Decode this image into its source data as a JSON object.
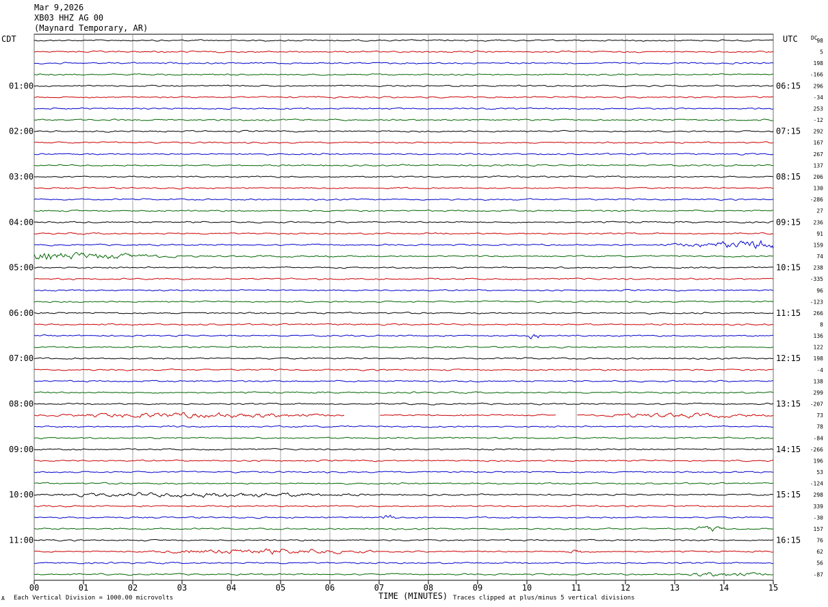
{
  "header": {
    "date": "Mar 9,2026",
    "station": "XB03 HHZ AG 00",
    "location": "(Maynard Temporary, AR)"
  },
  "left_tz": "CDT",
  "right_tz": "UTC",
  "dc_label": "DC",
  "footer": {
    "left_note": "Each Vertical Division = 1000.00 microvolts",
    "center_label": "TIME (MINUTES)",
    "right_note": "Traces clipped at plus/minus 5 vertical divisions",
    "corner_mark": "A"
  },
  "colors": {
    "trace_cycle": [
      "#000000",
      "#cc0000",
      "#0000cc",
      "#006600"
    ],
    "grid": "#888888"
  },
  "chart_data": {
    "type": "line",
    "x_label": "TIME (MINUTES)",
    "x_ticks": [
      "00",
      "01",
      "02",
      "03",
      "04",
      "05",
      "06",
      "07",
      "08",
      "09",
      "10",
      "11",
      "12",
      "13",
      "14",
      "15"
    ],
    "xlim": [
      0,
      15
    ],
    "trace_count": 48,
    "traces_per_hour": 4,
    "left_hour_labels": [
      {
        "trace": 4,
        "label": "01:00"
      },
      {
        "trace": 8,
        "label": "02:00"
      },
      {
        "trace": 12,
        "label": "03:00"
      },
      {
        "trace": 16,
        "label": "04:00"
      },
      {
        "trace": 20,
        "label": "05:00"
      },
      {
        "trace": 24,
        "label": "06:00"
      },
      {
        "trace": 28,
        "label": "07:00"
      },
      {
        "trace": 32,
        "label": "08:00"
      },
      {
        "trace": 36,
        "label": "09:00"
      },
      {
        "trace": 40,
        "label": "10:00"
      },
      {
        "trace": 44,
        "label": "11:00"
      }
    ],
    "right_hour_labels": [
      {
        "trace": 4,
        "label": "06:15"
      },
      {
        "trace": 8,
        "label": "07:15"
      },
      {
        "trace": 12,
        "label": "08:15"
      },
      {
        "trace": 16,
        "label": "09:15"
      },
      {
        "trace": 20,
        "label": "10:15"
      },
      {
        "trace": 24,
        "label": "11:15"
      },
      {
        "trace": 28,
        "label": "12:15"
      },
      {
        "trace": 32,
        "label": "13:15"
      },
      {
        "trace": 36,
        "label": "14:15"
      },
      {
        "trace": 40,
        "label": "15:15"
      },
      {
        "trace": 44,
        "label": "16:15"
      }
    ],
    "dc_offsets": [
      "98",
      "5",
      "198",
      "-166",
      "296",
      "-34",
      "253",
      "-12",
      "292",
      "167",
      "267",
      "137",
      "206",
      "130",
      "-286",
      "27",
      "236",
      "91",
      "159",
      "74",
      "238",
      "-335",
      "96",
      "-123",
      "266",
      "8",
      "136",
      "122",
      "198",
      "-4",
      "138",
      "299",
      "-207",
      "73",
      "78",
      "-84",
      "-266",
      "196",
      "53",
      "-124",
      "298",
      "339",
      "-30",
      "157",
      "76",
      "62",
      "56",
      "-87"
    ],
    "events": [
      {
        "trace": 18,
        "from_min": 12.2,
        "to_min": 15,
        "amp": 5
      },
      {
        "trace": 19,
        "from_min": 0,
        "to_min": 3,
        "amp": 4
      },
      {
        "trace": 26,
        "from_min": 10,
        "to_min": 10.3,
        "amp": 2.5
      },
      {
        "trace": 33,
        "from_min": 0.1,
        "to_min": 6.3,
        "amp": 2
      },
      {
        "trace": 33,
        "from_min": 11.2,
        "to_min": 15,
        "amp": 1.5
      },
      {
        "trace": 40,
        "from_min": 0,
        "to_min": 7,
        "amp": 1.8
      },
      {
        "trace": 42,
        "from_min": 7,
        "to_min": 7.4,
        "amp": 2.5
      },
      {
        "trace": 43,
        "from_min": 13.3,
        "to_min": 14.1,
        "amp": 2
      },
      {
        "trace": 45,
        "from_min": 2.2,
        "to_min": 7.2,
        "amp": 2
      },
      {
        "trace": 45,
        "from_min": 10.8,
        "to_min": 11.2,
        "amp": 2.5
      },
      {
        "trace": 47,
        "from_min": 13,
        "to_min": 15,
        "amp": 1.8
      }
    ],
    "gaps": [
      {
        "trace": 33,
        "from_min": 6.3,
        "to_min": 7.0
      },
      {
        "trace": 33,
        "from_min": 10.6,
        "to_min": 11.0
      }
    ]
  }
}
